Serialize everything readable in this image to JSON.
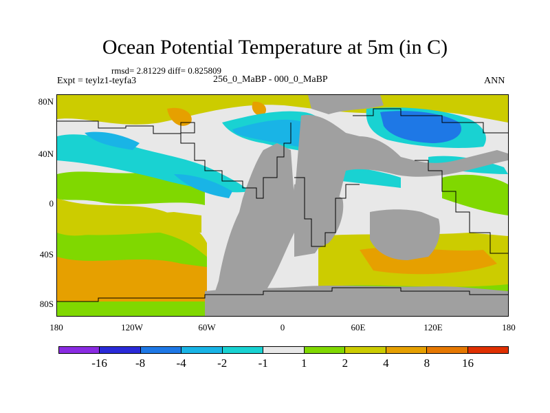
{
  "title": "Ocean Potential Temperature at 5m (in C)",
  "stats": "rmsd= 2.81229 diff= 0.825809",
  "experiment": "Expt = teylz1-teyfa3",
  "period": "256_0_MaBP - 000_0_MaBP",
  "season": "ANN",
  "y_axis_labels": [
    "80N",
    "40N",
    "0",
    "40S",
    "80S"
  ],
  "x_axis_labels": [
    "180",
    "120W",
    "60W",
    "0",
    "60E",
    "120E",
    "180"
  ],
  "colorbar": {
    "colors": [
      "#8a2be2",
      "#2a2ad8",
      "#1e78e6",
      "#19b4e6",
      "#19d2d2",
      "#e8e8e8",
      "#80d800",
      "#cccc00",
      "#e6a000",
      "#e67800",
      "#e03000"
    ],
    "labels": [
      "-16",
      "-8",
      "-4",
      "-2",
      "-1",
      "1",
      "2",
      "4",
      "8",
      "16"
    ]
  },
  "land_color": "#a0a0a0",
  "coastline_color": "#000000"
}
